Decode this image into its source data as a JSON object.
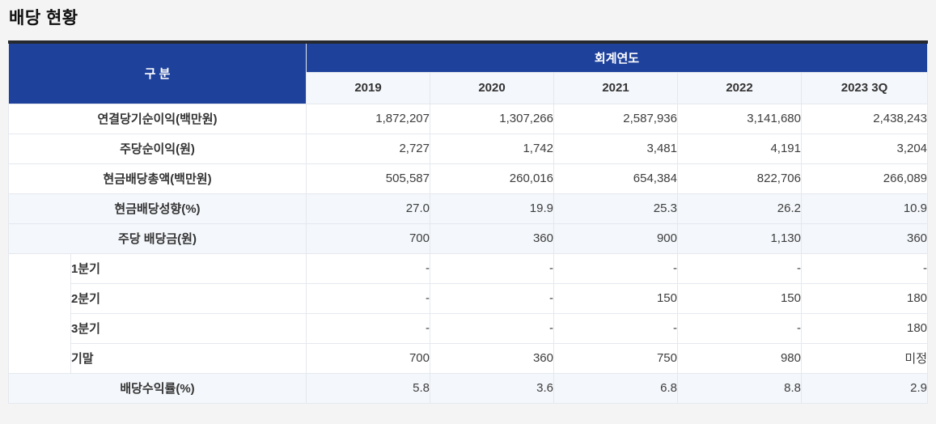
{
  "page": {
    "title": "배당 현황"
  },
  "table": {
    "corner_label": "구 분",
    "group_header": "회계연도",
    "years": [
      "2019",
      "2020",
      "2021",
      "2022",
      "2023 3Q"
    ],
    "rows": [
      {
        "label": "연결당기순이익(백만원)",
        "indent": false,
        "highlight": false,
        "values": [
          "1,872,207",
          "1,307,266",
          "2,587,936",
          "3,141,680",
          "2,438,243"
        ]
      },
      {
        "label": "주당순이익(원)",
        "indent": false,
        "highlight": false,
        "values": [
          "2,727",
          "1,742",
          "3,481",
          "4,191",
          "3,204"
        ]
      },
      {
        "label": "현금배당총액(백만원)",
        "indent": false,
        "highlight": false,
        "values": [
          "505,587",
          "260,016",
          "654,384",
          "822,706",
          "266,089"
        ]
      },
      {
        "label": "현금배당성향(%)",
        "indent": false,
        "highlight": true,
        "values": [
          "27.0",
          "19.9",
          "25.3",
          "26.2",
          "10.9"
        ]
      },
      {
        "label": "주당 배당금(원)",
        "indent": false,
        "highlight": true,
        "values": [
          "700",
          "360",
          "900",
          "1,130",
          "360"
        ]
      },
      {
        "label": "1분기",
        "indent": true,
        "highlight": false,
        "values": [
          "-",
          "-",
          "-",
          "-",
          "-"
        ]
      },
      {
        "label": "2분기",
        "indent": true,
        "highlight": false,
        "values": [
          "-",
          "-",
          "150",
          "150",
          "180"
        ]
      },
      {
        "label": "3분기",
        "indent": true,
        "highlight": false,
        "values": [
          "-",
          "-",
          "-",
          "-",
          "180"
        ]
      },
      {
        "label": "기말",
        "indent": true,
        "highlight": false,
        "values": [
          "700",
          "360",
          "750",
          "980",
          "미정"
        ]
      },
      {
        "label": "배당수익률(%)",
        "indent": false,
        "highlight": true,
        "values": [
          "5.8",
          "3.6",
          "6.8",
          "8.8",
          "2.9"
        ]
      }
    ],
    "colors": {
      "page_bg": "#f4f4f4",
      "header_bg": "#1e419b",
      "header_text": "#ffffff",
      "alt_row_bg": "#f4f7fb",
      "label_text": "#333333",
      "value_text": "#3d3d3d"
    }
  }
}
